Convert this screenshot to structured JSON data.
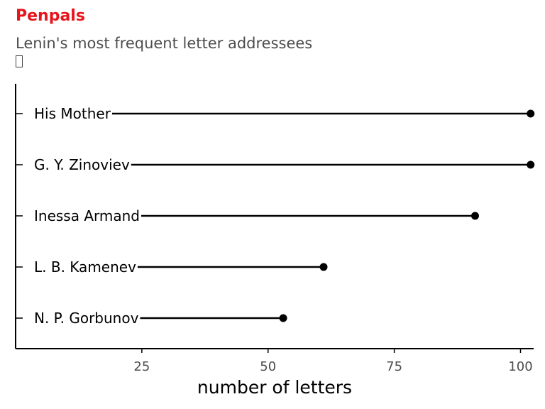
{
  "chart_data": {
    "type": "lollipop",
    "title": "Penpals",
    "subtitle": "Lenin's most frequent letter addressees",
    "xlabel": "number of letters",
    "ylabel": "",
    "xlim": [
      0,
      103
    ],
    "x_ticks": [
      25,
      50,
      75,
      100
    ],
    "categories": [
      "His Mother",
      "G. Y. Zinoviev",
      "Inessa Armand",
      "L. B. Kamenev",
      "N. P. Gorbunov"
    ],
    "values": [
      102,
      102,
      91,
      61,
      53
    ],
    "grid": false,
    "legend": "none",
    "colors": {
      "title": "#e8141b",
      "marks": "#000000"
    }
  }
}
